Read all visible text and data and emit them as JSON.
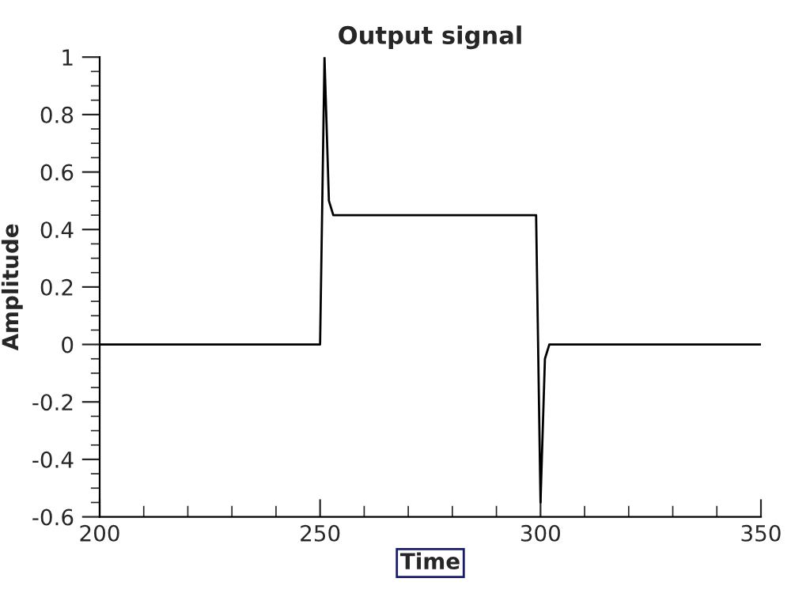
{
  "chart_data": {
    "type": "line",
    "title": "Output signal",
    "xlabel": "Time",
    "ylabel": "Amplitude",
    "x": [
      200,
      250,
      251,
      252,
      253,
      299,
      300,
      301,
      302,
      350
    ],
    "series": [
      {
        "color": "#000000",
        "values": [
          0,
          0,
          1,
          0.5,
          0.45,
          0.45,
          -0.55,
          -0.05,
          0,
          0
        ]
      }
    ],
    "xlim": [
      200,
      350
    ],
    "xticks": [
      200,
      250,
      300,
      350
    ],
    "ylim": [
      -0.6,
      1
    ],
    "yticks": [
      -0.6,
      -0.4,
      -0.2,
      0,
      0.2,
      0.4,
      0.6,
      0.8,
      1
    ],
    "grid": false,
    "legend": false,
    "marker": "none",
    "line_style": "solid"
  }
}
